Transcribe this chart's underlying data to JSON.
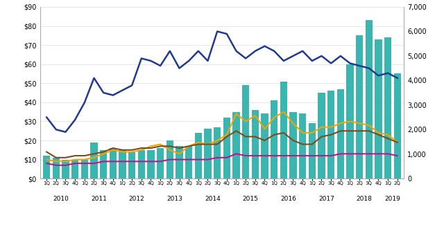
{
  "quarters": [
    "1Q",
    "2Q",
    "3Q",
    "4Q",
    "1Q",
    "2Q",
    "3Q",
    "4Q",
    "1Q",
    "2Q",
    "3Q",
    "4Q",
    "1Q",
    "2Q",
    "3Q",
    "4Q",
    "1Q",
    "2Q",
    "3Q",
    "4Q",
    "1Q",
    "2Q",
    "3Q",
    "4Q",
    "1Q",
    "2Q",
    "3Q",
    "4Q",
    "1Q",
    "2Q",
    "3Q",
    "4Q",
    "1Q",
    "2Q",
    "3Q",
    "4Q",
    "1Q",
    "2Q"
  ],
  "years": [
    2010,
    2010,
    2010,
    2010,
    2011,
    2011,
    2011,
    2011,
    2012,
    2012,
    2012,
    2012,
    2013,
    2013,
    2013,
    2013,
    2014,
    2014,
    2014,
    2014,
    2015,
    2015,
    2015,
    2015,
    2016,
    2016,
    2016,
    2016,
    2017,
    2017,
    2017,
    2017,
    2018,
    2018,
    2018,
    2018,
    2019,
    2019
  ],
  "capital_invested": [
    12,
    11,
    10,
    10,
    10,
    19,
    15,
    16,
    15,
    14,
    15,
    15,
    16,
    20,
    17,
    17,
    24,
    26,
    27,
    32,
    35,
    49,
    36,
    34,
    41,
    51,
    35,
    34,
    29,
    45,
    46,
    47,
    60,
    75,
    83,
    73,
    74,
    55
  ],
  "deals_closed": [
    2500,
    2000,
    1900,
    2400,
    3100,
    4100,
    3500,
    3400,
    3600,
    3800,
    4900,
    4800,
    4600,
    5200,
    4500,
    4800,
    5200,
    4800,
    6000,
    5900,
    5200,
    4900,
    5200,
    5400,
    5200,
    4800,
    5000,
    5200,
    4800,
    5000,
    4700,
    5000,
    4700,
    4600,
    4500,
    4200,
    4300,
    4100
  ],
  "angel_seed": [
    10,
    9,
    9,
    10,
    10,
    11,
    13,
    15,
    14,
    14,
    15,
    17,
    18,
    15,
    13,
    17,
    19,
    18,
    20,
    23,
    34,
    30,
    33,
    26,
    32,
    35,
    29,
    24,
    24,
    27,
    27,
    29,
    30,
    29,
    28,
    24,
    23,
    19
  ],
  "early_vc": [
    14,
    11,
    11,
    12,
    12,
    13,
    14,
    16,
    15,
    15,
    16,
    16,
    17,
    17,
    16,
    17,
    18,
    18,
    18,
    22,
    25,
    22,
    22,
    20,
    23,
    24,
    20,
    18,
    18,
    22,
    23,
    25,
    25,
    25,
    25,
    23,
    21,
    19
  ],
  "later_vc": [
    8,
    7,
    7,
    8,
    8,
    8,
    9,
    9,
    9,
    9,
    9,
    9,
    9,
    10,
    10,
    10,
    10,
    10,
    11,
    11,
    13,
    12,
    12,
    12,
    12,
    12,
    12,
    12,
    12,
    12,
    12,
    13,
    13,
    13,
    13,
    13,
    13,
    12
  ],
  "bar_color": "#3ab5b0",
  "deals_color": "#1f3a8f",
  "angel_color": "#f0a500",
  "earlyvc_color": "#7b4a1e",
  "latervc_color": "#c0148c",
  "left_ylim": [
    0,
    90
  ],
  "right_ylim": [
    0,
    7000
  ],
  "left_yticks": [
    0,
    10,
    20,
    30,
    40,
    50,
    60,
    70,
    80,
    90
  ],
  "right_yticks": [
    0,
    1000,
    2000,
    3000,
    4000,
    5000,
    6000,
    7000
  ],
  "year_labels": [
    2010,
    2011,
    2012,
    2013,
    2014,
    2015,
    2016,
    2017,
    2018,
    2019
  ],
  "bg_color": "#ffffff",
  "grid_color": "#dddddd"
}
